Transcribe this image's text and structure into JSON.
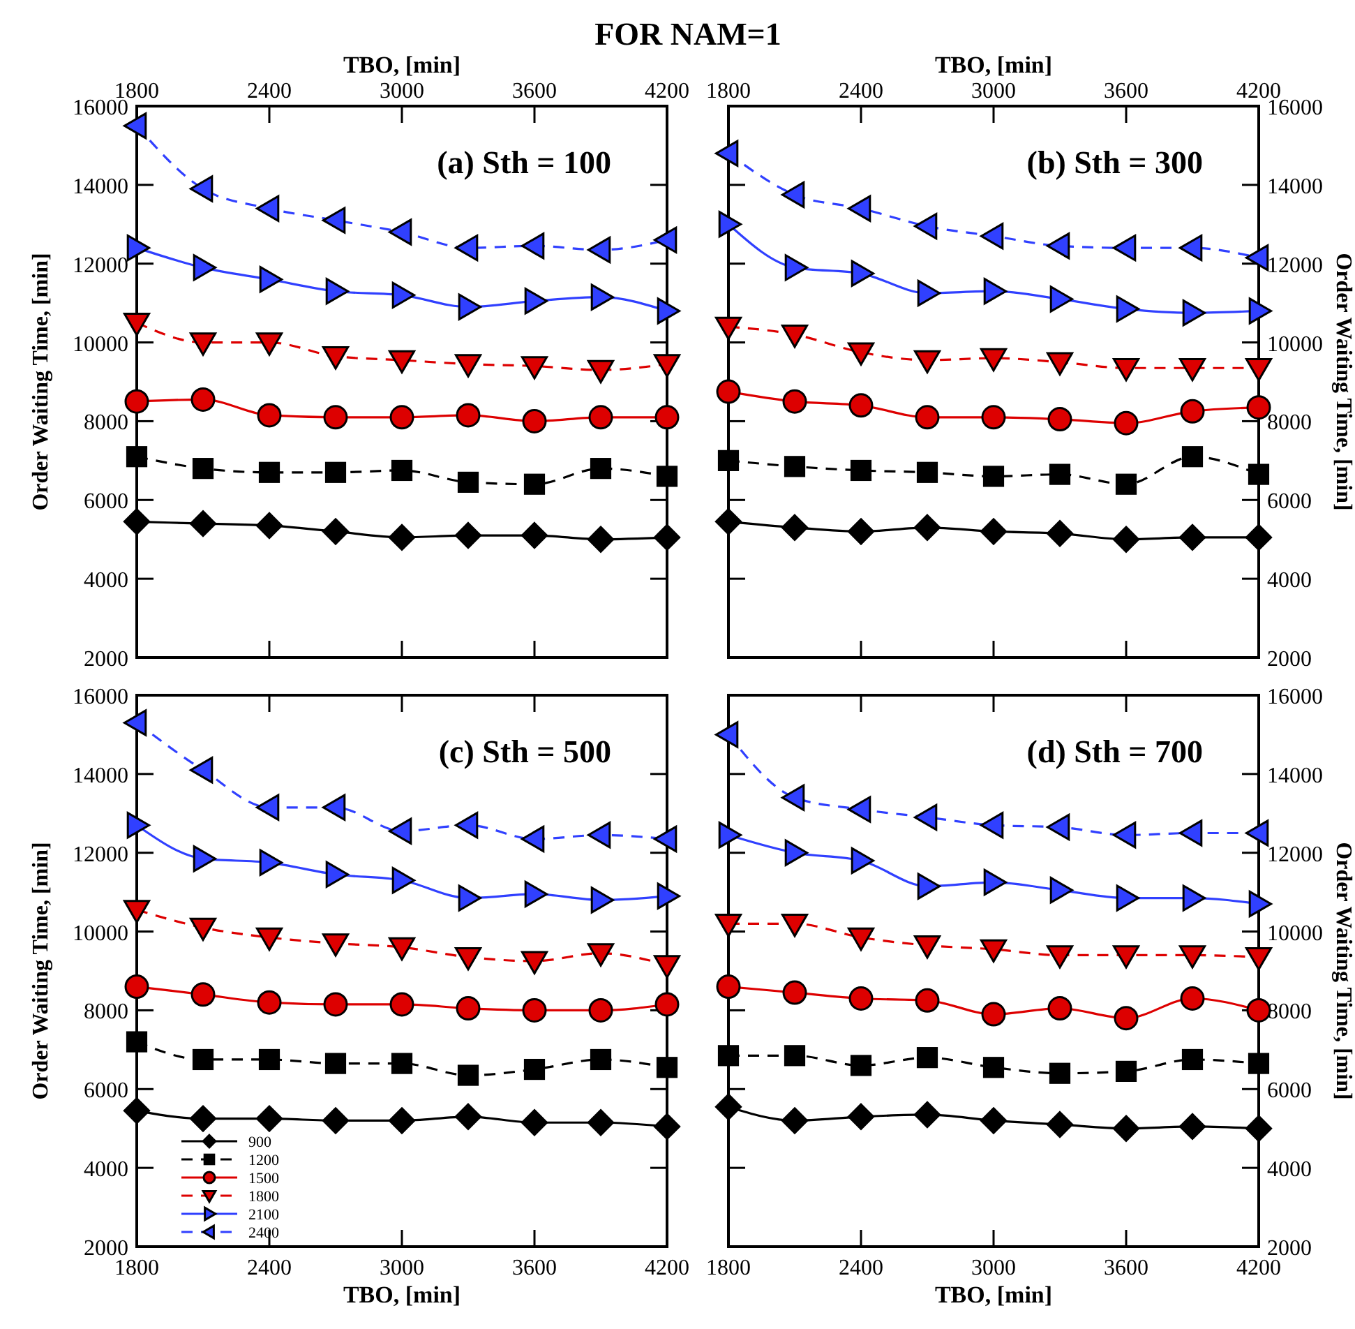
{
  "chart_data": [
    {
      "type": "line",
      "title": "FOR NAM=1",
      "subtitle": "(a) Sth = 100",
      "xlabel": "TBO, [min]",
      "ylabel": "Order Waiting Time, [min]",
      "x": [
        1800,
        2100,
        2400,
        2700,
        3000,
        3300,
        3600,
        3900,
        4200
      ],
      "xlim": [
        1800,
        4200
      ],
      "xticks": [
        1800,
        2400,
        3000,
        3600,
        4200
      ],
      "ylim": [
        2000,
        16000
      ],
      "yticks": [
        2000,
        4000,
        6000,
        8000,
        10000,
        12000,
        14000,
        16000
      ],
      "series": [
        {
          "color": "#000000",
          "marker": "diamond",
          "line_style": "solid",
          "values": [
            5450,
            5400,
            5350,
            5200,
            5050,
            5100,
            5100,
            5000,
            5050
          ]
        },
        {
          "color": "#000000",
          "marker": "square",
          "line_style": "dashed",
          "values": [
            7100,
            6800,
            6700,
            6700,
            6750,
            6450,
            6400,
            6800,
            6600
          ]
        },
        {
          "color": "#dd0000",
          "marker": "circle",
          "line_style": "solid",
          "values": [
            8500,
            8550,
            8150,
            8100,
            8100,
            8150,
            8000,
            8100,
            8100
          ]
        },
        {
          "color": "#dd0000",
          "marker": "triangle-down",
          "line_style": "dashed",
          "values": [
            10500,
            10000,
            10000,
            9650,
            9550,
            9450,
            9400,
            9300,
            9450
          ]
        },
        {
          "color": "#3040ff",
          "marker": "triangle-right",
          "line_style": "solid",
          "values": [
            12400,
            11900,
            11600,
            11300,
            11200,
            10900,
            11050,
            11150,
            10800
          ]
        },
        {
          "color": "#3040ff",
          "marker": "triangle-left",
          "line_style": "dashed",
          "values": [
            15500,
            13900,
            13400,
            13100,
            12800,
            12400,
            12450,
            12350,
            12600
          ]
        }
      ]
    },
    {
      "type": "line",
      "subtitle": "(b) Sth = 300",
      "xlabel": "TBO, [min]",
      "y2label": "Order Waiting Time, [min]",
      "x": [
        1800,
        2100,
        2400,
        2700,
        3000,
        3300,
        3600,
        3900,
        4200
      ],
      "xlim": [
        1800,
        4200
      ],
      "xticks": [
        1800,
        2400,
        3000,
        3600,
        4200
      ],
      "y2lim": [
        2000,
        16000
      ],
      "y2ticks": [
        2000,
        4000,
        6000,
        8000,
        10000,
        12000,
        14000,
        16000
      ],
      "series": [
        {
          "axis": "y2",
          "color": "#000000",
          "marker": "diamond",
          "line_style": "solid",
          "values": [
            5450,
            5300,
            5200,
            5300,
            5200,
            5150,
            5000,
            5050,
            5050
          ]
        },
        {
          "axis": "y2",
          "color": "#000000",
          "marker": "square",
          "line_style": "dashed",
          "values": [
            7000,
            6850,
            6750,
            6700,
            6600,
            6650,
            6400,
            7100,
            6650
          ]
        },
        {
          "axis": "y2",
          "color": "#dd0000",
          "marker": "circle",
          "line_style": "solid",
          "values": [
            8750,
            8500,
            8400,
            8100,
            8100,
            8050,
            7950,
            8250,
            8350
          ]
        },
        {
          "axis": "y2",
          "color": "#dd0000",
          "marker": "triangle-down",
          "line_style": "dashed",
          "values": [
            10400,
            10200,
            9750,
            9550,
            9600,
            9500,
            9350,
            9350,
            9350
          ]
        },
        {
          "axis": "y2",
          "color": "#3040ff",
          "marker": "triangle-right",
          "line_style": "solid",
          "values": [
            13000,
            11900,
            11750,
            11250,
            11300,
            11100,
            10850,
            10750,
            10800
          ]
        },
        {
          "axis": "y2",
          "color": "#3040ff",
          "marker": "triangle-left",
          "line_style": "dashed",
          "values": [
            14800,
            13750,
            13400,
            12950,
            12700,
            12450,
            12400,
            12400,
            12150
          ]
        }
      ]
    },
    {
      "type": "line",
      "subtitle": "(c) Sth = 500",
      "xlabel": "TBO, [min]",
      "ylabel": "Order Waiting Time, [min]",
      "legend": "bottom left",
      "x": [
        1800,
        2100,
        2400,
        2700,
        3000,
        3300,
        3600,
        3900,
        4200
      ],
      "xlim": [
        1800,
        4200
      ],
      "xticks": [
        1800,
        2400,
        3000,
        3600,
        4200
      ],
      "ylim": [
        2000,
        16000
      ],
      "yticks": [
        2000,
        4000,
        6000,
        8000,
        10000,
        12000,
        14000,
        16000
      ],
      "series": [
        {
          "name": "900",
          "color": "#000000",
          "marker": "diamond",
          "line_style": "solid",
          "values": [
            5450,
            5250,
            5250,
            5200,
            5200,
            5300,
            5150,
            5150,
            5050
          ]
        },
        {
          "name": "1200",
          "color": "#000000",
          "marker": "square",
          "line_style": "dashed",
          "values": [
            7200,
            6750,
            6750,
            6650,
            6650,
            6350,
            6500,
            6750,
            6550
          ]
        },
        {
          "name": "1500",
          "color": "#dd0000",
          "marker": "circle",
          "line_style": "solid",
          "values": [
            8600,
            8400,
            8200,
            8150,
            8150,
            8050,
            8000,
            8000,
            8150
          ]
        },
        {
          "name": "1800",
          "color": "#dd0000",
          "marker": "triangle-down",
          "line_style": "dashed",
          "values": [
            10550,
            10100,
            9850,
            9700,
            9600,
            9350,
            9250,
            9450,
            9150
          ]
        },
        {
          "name": "2100",
          "color": "#3040ff",
          "marker": "triangle-right",
          "line_style": "solid",
          "values": [
            12700,
            11850,
            11750,
            11450,
            11300,
            10850,
            10950,
            10800,
            10900
          ]
        },
        {
          "name": "2400",
          "color": "#3040ff",
          "marker": "triangle-left",
          "line_style": "dashed",
          "values": [
            15300,
            14100,
            13150,
            13150,
            12550,
            12700,
            12350,
            12450,
            12350
          ]
        }
      ]
    },
    {
      "type": "line",
      "subtitle": "(d) Sth = 700",
      "xlabel": "TBO, [min]",
      "y2label": "Order Waiting Time, [min]",
      "x": [
        1800,
        2100,
        2400,
        2700,
        3000,
        3300,
        3600,
        3900,
        4200
      ],
      "xlim": [
        1800,
        4200
      ],
      "xticks": [
        1800,
        2400,
        3000,
        3600,
        4200
      ],
      "y2lim": [
        2000,
        16000
      ],
      "y2ticks": [
        2000,
        4000,
        6000,
        8000,
        10000,
        12000,
        14000,
        16000
      ],
      "series": [
        {
          "axis": "y2",
          "color": "#000000",
          "marker": "diamond",
          "line_style": "solid",
          "values": [
            5550,
            5200,
            5300,
            5350,
            5200,
            5100,
            5000,
            5050,
            5000
          ]
        },
        {
          "axis": "y2",
          "color": "#000000",
          "marker": "square",
          "line_style": "dashed",
          "values": [
            6850,
            6850,
            6600,
            6800,
            6550,
            6400,
            6450,
            6750,
            6650
          ]
        },
        {
          "axis": "y2",
          "color": "#dd0000",
          "marker": "circle",
          "line_style": "solid",
          "values": [
            8600,
            8450,
            8300,
            8250,
            7900,
            8050,
            7800,
            8300,
            8000
          ]
        },
        {
          "axis": "y2",
          "color": "#dd0000",
          "marker": "triangle-down",
          "line_style": "dashed",
          "values": [
            10200,
            10200,
            9850,
            9650,
            9550,
            9400,
            9400,
            9400,
            9350
          ]
        },
        {
          "axis": "y2",
          "color": "#3040ff",
          "marker": "triangle-right",
          "line_style": "solid",
          "values": [
            12450,
            12000,
            11800,
            11150,
            11250,
            11050,
            10850,
            10850,
            10700
          ]
        },
        {
          "axis": "y2",
          "color": "#3040ff",
          "marker": "triangle-left",
          "line_style": "dashed",
          "values": [
            15000,
            13400,
            13100,
            12900,
            12700,
            12650,
            12450,
            12500,
            12500
          ]
        }
      ]
    }
  ]
}
